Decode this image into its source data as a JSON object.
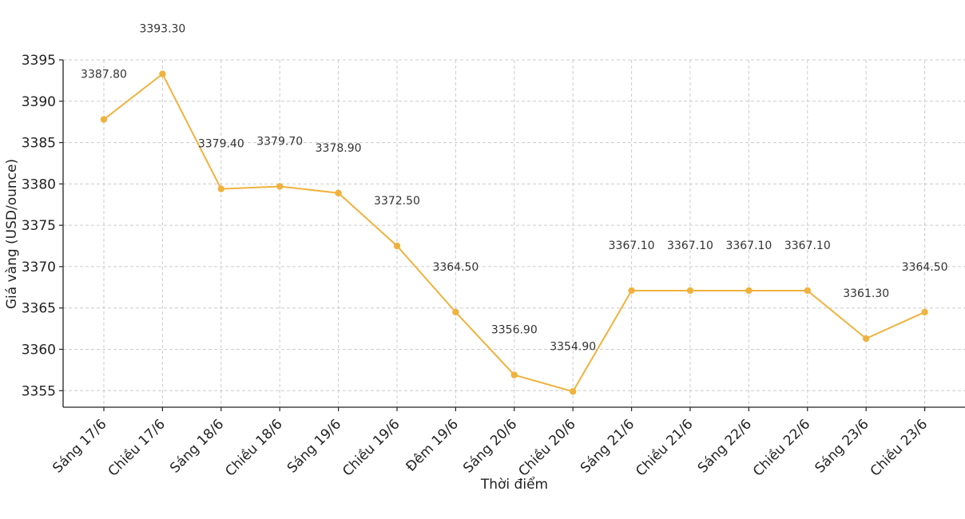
{
  "chart_data": {
    "type": "line",
    "title": "",
    "xlabel": "Thời điểm",
    "ylabel": "Giá vàng (USD/ounce)",
    "categories": [
      "Sáng 17/6",
      "Chiều 17/6",
      "Sáng 18/6",
      "Chiều 18/6",
      "Sáng 19/6",
      "Chiều 19/6",
      "Đêm 19/6",
      "Sáng 20/6",
      "Chiều 20/6",
      "Sáng 21/6",
      "Chiều 21/6",
      "Sáng 22/6",
      "Chiều 22/6",
      "Sáng 23/6",
      "Chiều 23/6"
    ],
    "values": [
      3387.8,
      3393.3,
      3379.4,
      3379.7,
      3378.9,
      3372.5,
      3364.5,
      3356.9,
      3354.9,
      3367.1,
      3367.1,
      3367.1,
      3367.1,
      3361.3,
      3364.5
    ],
    "data_labels": [
      "3387.80",
      "3393.30",
      "3379.40",
      "3379.70",
      "3378.90",
      "3372.50",
      "3364.50",
      "3356.90",
      "3354.90",
      "3367.10",
      "3367.10",
      "3367.10",
      "3367.10",
      "3361.30",
      "3364.50"
    ],
    "yticks": [
      "3355",
      "3360",
      "3365",
      "3370",
      "3375",
      "3380",
      "3385",
      "3390",
      "3395"
    ],
    "ylim": [
      3353,
      3395
    ],
    "grid": true,
    "line_color": "#f0b23e",
    "marker": "circle"
  }
}
